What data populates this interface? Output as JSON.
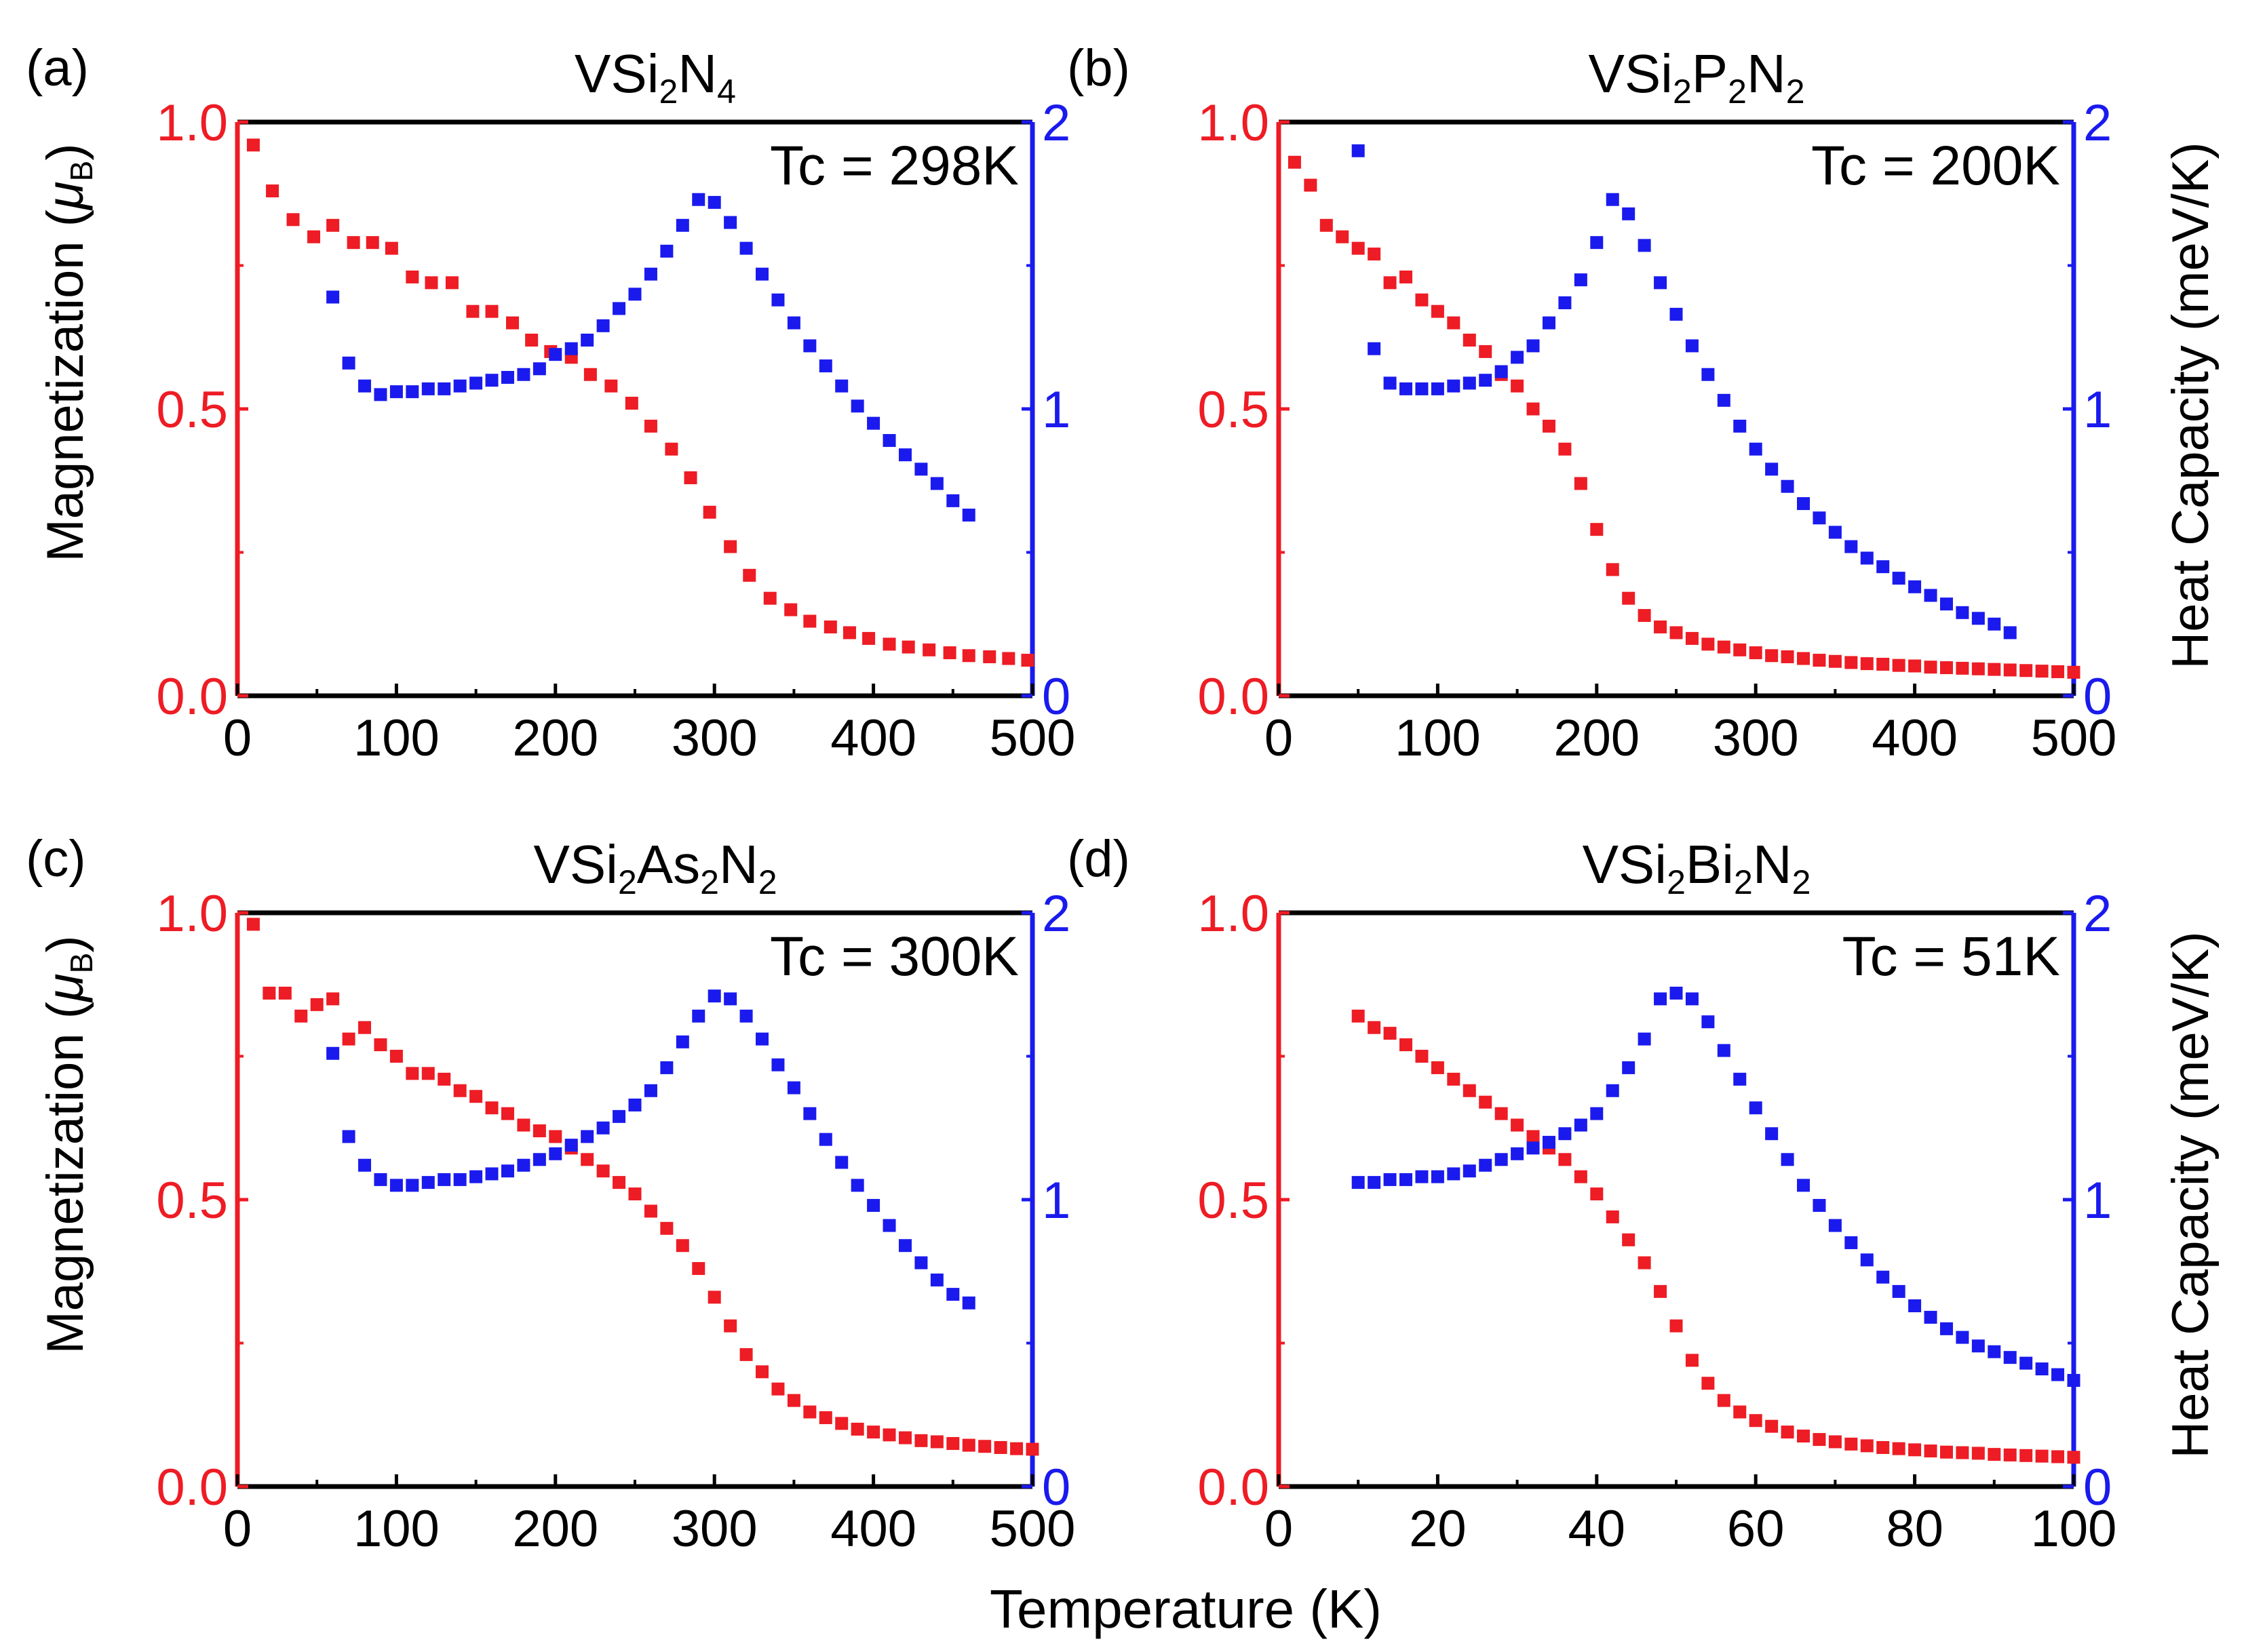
{
  "figure": {
    "xlabel": "Temperature (K)",
    "ylabel_left_main": "Magnetization (",
    "ylabel_left_mu": "μ",
    "ylabel_left_sub": "B",
    "ylabel_left_close": ")",
    "ylabel_right": "Heat Capacity (meV/K)",
    "colors": {
      "magnetization": "#ee1c24",
      "heat_capacity": "#1a1aee",
      "frame": "#000000"
    }
  },
  "chart_data": [
    {
      "type": "scatter",
      "panel_label": "(a)",
      "title": {
        "base": "VSi",
        "parts": [
          {
            "t": "2",
            "sub": true
          },
          {
            "t": "N",
            "sub": false
          },
          {
            "t": "4",
            "sub": true
          }
        ]
      },
      "annotation": "Tc = 298K",
      "xlim": [
        0,
        500
      ],
      "xticks": [
        "0",
        "100",
        "200",
        "300",
        "400",
        "500"
      ],
      "ylim_left": [
        0,
        1
      ],
      "yticks_left": [
        "0.0",
        "0.5",
        "1.0"
      ],
      "ylim_right": [
        0,
        2
      ],
      "yticks_right": [
        "0",
        "1",
        "2"
      ],
      "series": [
        {
          "name": "Magnetization",
          "axis": "left",
          "x": [
            10,
            22,
            35,
            48,
            60,
            73,
            85,
            97,
            110,
            122,
            135,
            148,
            160,
            173,
            185,
            197,
            210,
            222,
            235,
            248,
            260,
            273,
            285,
            297,
            310,
            322,
            335,
            348,
            360,
            373,
            385,
            397,
            410,
            422,
            435,
            448,
            460,
            473,
            485,
            497
          ],
          "y": [
            0.96,
            0.88,
            0.83,
            0.8,
            0.82,
            0.79,
            0.79,
            0.78,
            0.73,
            0.72,
            0.72,
            0.67,
            0.67,
            0.65,
            0.62,
            0.6,
            0.59,
            0.56,
            0.54,
            0.51,
            0.47,
            0.43,
            0.38,
            0.32,
            0.26,
            0.21,
            0.17,
            0.15,
            0.13,
            0.12,
            0.11,
            0.1,
            0.09,
            0.085,
            0.08,
            0.075,
            0.07,
            0.068,
            0.065,
            0.062
          ]
        },
        {
          "name": "Heat Capacity",
          "axis": "right",
          "x": [
            60,
            70,
            80,
            90,
            100,
            110,
            120,
            130,
            140,
            150,
            160,
            170,
            180,
            190,
            200,
            210,
            220,
            230,
            240,
            250,
            260,
            270,
            280,
            290,
            300,
            310,
            320,
            330,
            340,
            350,
            360,
            370,
            380,
            390,
            400,
            410,
            420,
            430,
            440,
            450,
            460
          ],
          "y": [
            1.39,
            1.16,
            1.08,
            1.05,
            1.06,
            1.06,
            1.07,
            1.07,
            1.08,
            1.09,
            1.1,
            1.11,
            1.12,
            1.14,
            1.19,
            1.21,
            1.24,
            1.29,
            1.35,
            1.4,
            1.47,
            1.55,
            1.64,
            1.73,
            1.72,
            1.65,
            1.56,
            1.47,
            1.38,
            1.3,
            1.22,
            1.15,
            1.08,
            1.01,
            0.95,
            0.89,
            0.84,
            0.79,
            0.74,
            0.68,
            0.63
          ]
        }
      ]
    },
    {
      "type": "scatter",
      "panel_label": "(b)",
      "title": {
        "base": "VSi",
        "parts": [
          {
            "t": "2",
            "sub": true
          },
          {
            "t": "P",
            "sub": false
          },
          {
            "t": "2",
            "sub": true
          },
          {
            "t": "N",
            "sub": false
          },
          {
            "t": "2",
            "sub": true
          }
        ]
      },
      "annotation": "Tc = 200K",
      "xlim": [
        0,
        500
      ],
      "xticks": [
        "0",
        "100",
        "200",
        "300",
        "400",
        "500"
      ],
      "ylim_left": [
        0,
        1
      ],
      "yticks_left": [
        "0.0",
        "0.5",
        "1.0"
      ],
      "ylim_right": [
        0,
        2
      ],
      "yticks_right": [
        "0",
        "1",
        "2"
      ],
      "series": [
        {
          "name": "Magnetization",
          "axis": "left",
          "x": [
            10,
            20,
            30,
            40,
            50,
            60,
            70,
            80,
            90,
            100,
            110,
            120,
            130,
            140,
            150,
            160,
            170,
            180,
            190,
            200,
            210,
            220,
            230,
            240,
            250,
            260,
            270,
            280,
            290,
            300,
            310,
            320,
            330,
            340,
            350,
            360,
            370,
            380,
            390,
            400,
            410,
            420,
            430,
            440,
            450,
            460,
            470,
            480,
            490,
            500
          ],
          "y": [
            0.93,
            0.89,
            0.82,
            0.8,
            0.78,
            0.77,
            0.72,
            0.73,
            0.69,
            0.67,
            0.65,
            0.62,
            0.6,
            0.56,
            0.54,
            0.5,
            0.47,
            0.43,
            0.37,
            0.29,
            0.22,
            0.17,
            0.14,
            0.12,
            0.11,
            0.1,
            0.09,
            0.085,
            0.08,
            0.075,
            0.07,
            0.068,
            0.065,
            0.062,
            0.06,
            0.058,
            0.056,
            0.055,
            0.053,
            0.052,
            0.05,
            0.049,
            0.048,
            0.047,
            0.046,
            0.045,
            0.044,
            0.043,
            0.042,
            0.041
          ]
        },
        {
          "name": "Heat Capacity",
          "axis": "right",
          "x": [
            50,
            60,
            70,
            80,
            90,
            100,
            110,
            120,
            130,
            140,
            150,
            160,
            170,
            180,
            190,
            200,
            210,
            220,
            230,
            240,
            250,
            260,
            270,
            280,
            290,
            300,
            310,
            320,
            330,
            340,
            350,
            360,
            370,
            380,
            390,
            400,
            410,
            420,
            430,
            440,
            450,
            460
          ],
          "y": [
            1.9,
            1.21,
            1.09,
            1.07,
            1.07,
            1.07,
            1.08,
            1.09,
            1.1,
            1.13,
            1.18,
            1.22,
            1.3,
            1.37,
            1.45,
            1.58,
            1.73,
            1.68,
            1.57,
            1.44,
            1.33,
            1.22,
            1.12,
            1.03,
            0.94,
            0.86,
            0.79,
            0.73,
            0.67,
            0.62,
            0.57,
            0.52,
            0.48,
            0.45,
            0.41,
            0.38,
            0.35,
            0.32,
            0.29,
            0.27,
            0.25,
            0.22
          ]
        }
      ]
    },
    {
      "type": "scatter",
      "panel_label": "(c)",
      "title": {
        "base": "VSi",
        "parts": [
          {
            "t": "2",
            "sub": true
          },
          {
            "t": "As",
            "sub": false
          },
          {
            "t": "2",
            "sub": true
          },
          {
            "t": "N",
            "sub": false
          },
          {
            "t": "2",
            "sub": true
          }
        ]
      },
      "annotation": "Tc = 300K",
      "xlim": [
        0,
        500
      ],
      "xticks": [
        "0",
        "100",
        "200",
        "300",
        "400",
        "500"
      ],
      "ylim_left": [
        0,
        1
      ],
      "yticks_left": [
        "0.0",
        "0.5",
        "1.0"
      ],
      "ylim_right": [
        0,
        2
      ],
      "yticks_right": [
        "0",
        "1",
        "2"
      ],
      "series": [
        {
          "name": "Magnetization",
          "axis": "left",
          "x": [
            10,
            20,
            30,
            40,
            50,
            60,
            70,
            80,
            90,
            100,
            110,
            120,
            130,
            140,
            150,
            160,
            170,
            180,
            190,
            200,
            210,
            220,
            230,
            240,
            250,
            260,
            270,
            280,
            290,
            300,
            310,
            320,
            330,
            340,
            350,
            360,
            370,
            380,
            390,
            400,
            410,
            420,
            430,
            440,
            450,
            460,
            470,
            480,
            490,
            500
          ],
          "y": [
            0.98,
            0.86,
            0.86,
            0.82,
            0.84,
            0.85,
            0.78,
            0.8,
            0.77,
            0.75,
            0.72,
            0.72,
            0.71,
            0.69,
            0.68,
            0.66,
            0.65,
            0.63,
            0.62,
            0.61,
            0.59,
            0.57,
            0.55,
            0.53,
            0.51,
            0.48,
            0.45,
            0.42,
            0.38,
            0.33,
            0.28,
            0.23,
            0.2,
            0.17,
            0.15,
            0.13,
            0.12,
            0.11,
            0.1,
            0.095,
            0.09,
            0.085,
            0.08,
            0.078,
            0.075,
            0.072,
            0.07,
            0.068,
            0.066,
            0.065
          ]
        },
        {
          "name": "Heat Capacity",
          "axis": "right",
          "x": [
            60,
            70,
            80,
            90,
            100,
            110,
            120,
            130,
            140,
            150,
            160,
            170,
            180,
            190,
            200,
            210,
            220,
            230,
            240,
            250,
            260,
            270,
            280,
            290,
            300,
            310,
            320,
            330,
            340,
            350,
            360,
            370,
            380,
            390,
            400,
            410,
            420,
            430,
            440,
            450,
            460
          ],
          "y": [
            1.51,
            1.22,
            1.12,
            1.07,
            1.05,
            1.05,
            1.06,
            1.07,
            1.07,
            1.08,
            1.09,
            1.1,
            1.12,
            1.14,
            1.16,
            1.19,
            1.22,
            1.25,
            1.29,
            1.33,
            1.38,
            1.46,
            1.55,
            1.64,
            1.71,
            1.7,
            1.64,
            1.56,
            1.47,
            1.39,
            1.3,
            1.21,
            1.13,
            1.05,
            0.98,
            0.91,
            0.84,
            0.78,
            0.72,
            0.67,
            0.64
          ]
        }
      ]
    },
    {
      "type": "scatter",
      "panel_label": "(d)",
      "title": {
        "base": "VSi",
        "parts": [
          {
            "t": "2",
            "sub": true
          },
          {
            "t": "Bi",
            "sub": false
          },
          {
            "t": "2",
            "sub": true
          },
          {
            "t": "N",
            "sub": false
          },
          {
            "t": "2",
            "sub": true
          }
        ]
      },
      "annotation": "Tc = 51K",
      "xlim": [
        0,
        100
      ],
      "xticks": [
        "0",
        "20",
        "40",
        "60",
        "80",
        "100"
      ],
      "ylim_left": [
        0,
        1
      ],
      "yticks_left": [
        "0.0",
        "0.5",
        "1.0"
      ],
      "ylim_right": [
        0,
        2
      ],
      "yticks_right": [
        "0",
        "1",
        "2"
      ],
      "series": [
        {
          "name": "Magnetization",
          "axis": "left",
          "x": [
            10,
            12,
            14,
            16,
            18,
            20,
            22,
            24,
            26,
            28,
            30,
            32,
            34,
            36,
            38,
            40,
            42,
            44,
            46,
            48,
            50,
            52,
            54,
            56,
            58,
            60,
            62,
            64,
            66,
            68,
            70,
            72,
            74,
            76,
            78,
            80,
            82,
            84,
            86,
            88,
            90,
            92,
            94,
            96,
            98,
            100
          ],
          "y": [
            0.82,
            0.8,
            0.79,
            0.77,
            0.75,
            0.73,
            0.71,
            0.69,
            0.67,
            0.65,
            0.63,
            0.61,
            0.59,
            0.57,
            0.54,
            0.51,
            0.47,
            0.43,
            0.39,
            0.34,
            0.28,
            0.22,
            0.18,
            0.15,
            0.13,
            0.115,
            0.105,
            0.095,
            0.088,
            0.082,
            0.078,
            0.074,
            0.071,
            0.068,
            0.066,
            0.064,
            0.062,
            0.06,
            0.059,
            0.058,
            0.056,
            0.055,
            0.054,
            0.053,
            0.052,
            0.051
          ]
        },
        {
          "name": "Heat Capacity",
          "axis": "right",
          "x": [
            10,
            12,
            14,
            16,
            18,
            20,
            22,
            24,
            26,
            28,
            30,
            32,
            34,
            36,
            38,
            40,
            42,
            44,
            46,
            48,
            50,
            52,
            54,
            56,
            58,
            60,
            62,
            64,
            66,
            68,
            70,
            72,
            74,
            76,
            78,
            80,
            82,
            84,
            86,
            88,
            90,
            92,
            94,
            96,
            98,
            100
          ],
          "y": [
            1.06,
            1.06,
            1.07,
            1.07,
            1.08,
            1.08,
            1.09,
            1.1,
            1.12,
            1.14,
            1.16,
            1.18,
            1.2,
            1.23,
            1.26,
            1.3,
            1.38,
            1.46,
            1.56,
            1.7,
            1.72,
            1.7,
            1.62,
            1.52,
            1.42,
            1.32,
            1.23,
            1.14,
            1.05,
            0.98,
            0.91,
            0.85,
            0.79,
            0.73,
            0.68,
            0.63,
            0.59,
            0.55,
            0.52,
            0.49,
            0.47,
            0.45,
            0.43,
            0.41,
            0.39,
            0.37
          ]
        }
      ]
    }
  ]
}
